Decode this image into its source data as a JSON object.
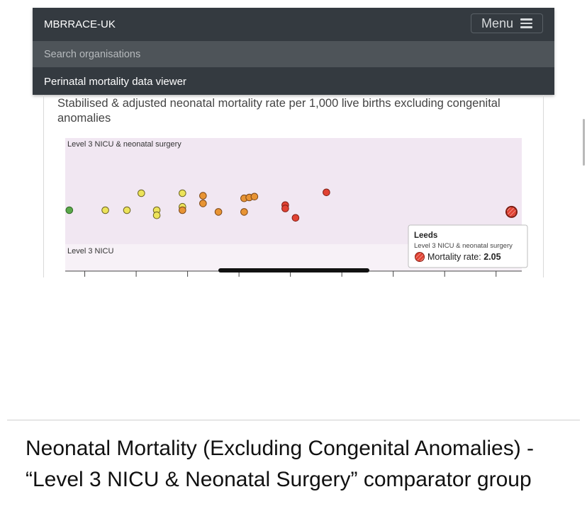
{
  "navbar": {
    "brand": "MBRRACE-UK",
    "menu_label": "Menu",
    "search_placeholder": "Search organisations",
    "link": "Perinatal mortality data viewer"
  },
  "chart_title": "Stabilised & adjusted neonatal mortality rate per 1,000 live births excluding congenital anomalies",
  "chart_data": {
    "type": "scatter",
    "bands": [
      "Level 3 NICU & neonatal surgery",
      "Level 3 NICU"
    ],
    "colors": {
      "band_top": "#f1e7f2",
      "band_bottom": "#f7f1f7",
      "green": "#5aa84a",
      "yellow": "#ece35a",
      "orange": "#e89434",
      "red": "#e14233",
      "hatched_red": "#e14233"
    },
    "points": [
      {
        "x": 0.1,
        "jitter": 0.0,
        "category": "green"
      },
      {
        "x": 0.45,
        "jitter": 0.0,
        "category": "yellow"
      },
      {
        "x": 0.66,
        "jitter": 0.0,
        "category": "yellow"
      },
      {
        "x": 0.8,
        "jitter": 1.0,
        "category": "yellow"
      },
      {
        "x": 0.95,
        "jitter": 0.0,
        "category": "yellow"
      },
      {
        "x": 0.95,
        "jitter": -0.3,
        "category": "yellow"
      },
      {
        "x": 1.2,
        "jitter": 1.0,
        "category": "yellow"
      },
      {
        "x": 1.2,
        "jitter": 0.2,
        "category": "yellow"
      },
      {
        "x": 1.2,
        "jitter": 0.0,
        "category": "orange"
      },
      {
        "x": 1.4,
        "jitter": 0.85,
        "category": "orange"
      },
      {
        "x": 1.4,
        "jitter": 0.4,
        "category": "orange"
      },
      {
        "x": 1.55,
        "jitter": -0.1,
        "category": "orange"
      },
      {
        "x": 1.8,
        "jitter": 0.7,
        "category": "orange"
      },
      {
        "x": 1.85,
        "jitter": 0.75,
        "category": "orange"
      },
      {
        "x": 1.9,
        "jitter": 0.8,
        "category": "orange"
      },
      {
        "x": 1.8,
        "jitter": -0.1,
        "category": "orange"
      },
      {
        "x": 2.2,
        "jitter": 0.3,
        "category": "red"
      },
      {
        "x": 2.2,
        "jitter": 0.1,
        "category": "red"
      },
      {
        "x": 2.3,
        "jitter": -0.45,
        "category": "red"
      },
      {
        "x": 2.6,
        "jitter": 1.05,
        "category": "red"
      },
      {
        "x": 4.4,
        "jitter": -0.1,
        "category": "hatched_red",
        "selected": true
      }
    ],
    "xlim": [
      0.06,
      4.5
    ],
    "ticks": [
      0.25,
      0.75,
      1.25,
      1.75,
      2.25,
      2.75,
      3.25,
      3.75,
      4.25
    ],
    "tooltip": {
      "name": "Leeds",
      "group": "Level 3 NICU & neonatal surgery",
      "metric_label": "Mortality rate:",
      "value": "2.05"
    }
  },
  "caption": "Neonatal Mortality (Excluding Congenital Anomalies) - “Level 3 NICU & Neonatal Surgery” comparator group"
}
